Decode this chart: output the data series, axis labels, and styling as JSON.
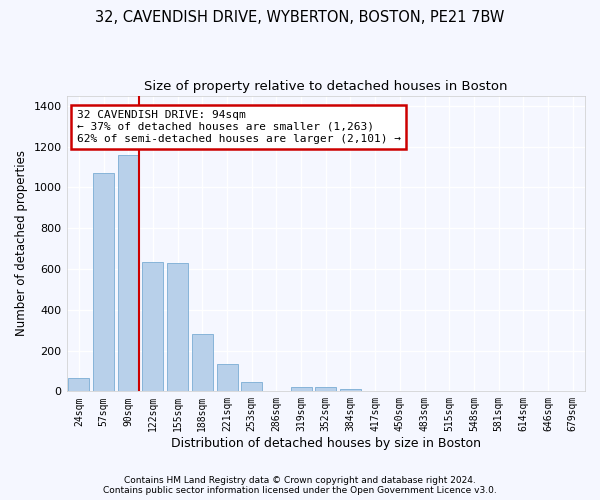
{
  "title1": "32, CAVENDISH DRIVE, WYBERTON, BOSTON, PE21 7BW",
  "title2": "Size of property relative to detached houses in Boston",
  "xlabel": "Distribution of detached houses by size in Boston",
  "ylabel": "Number of detached properties",
  "footer1": "Contains HM Land Registry data © Crown copyright and database right 2024.",
  "footer2": "Contains public sector information licensed under the Open Government Licence v3.0.",
  "bin_labels": [
    "24sqm",
    "57sqm",
    "90sqm",
    "122sqm",
    "155sqm",
    "188sqm",
    "221sqm",
    "253sqm",
    "286sqm",
    "319sqm",
    "352sqm",
    "384sqm",
    "417sqm",
    "450sqm",
    "483sqm",
    "515sqm",
    "548sqm",
    "581sqm",
    "614sqm",
    "646sqm",
    "679sqm"
  ],
  "bar_values": [
    65,
    1070,
    1160,
    635,
    630,
    280,
    135,
    45,
    0,
    20,
    20,
    10,
    0,
    0,
    0,
    0,
    0,
    0,
    0,
    0,
    0
  ],
  "bar_color": "#b8d0ea",
  "bar_edge_color": "#7aadd4",
  "vline_color": "#cc0000",
  "annotation_text": "32 CAVENDISH DRIVE: 94sqm\n← 37% of detached houses are smaller (1,263)\n62% of semi-detached houses are larger (2,101) →",
  "annotation_box_color": "#cc0000",
  "annotation_text_color": "#000000",
  "ylim": [
    0,
    1450
  ],
  "background_color": "#f5f7ff",
  "plot_bg_color": "#f5f7ff",
  "grid_color": "#ffffff",
  "title1_fontsize": 10.5,
  "title2_fontsize": 9.5,
  "xlabel_fontsize": 9,
  "ylabel_fontsize": 8.5,
  "footer_fontsize": 6.5,
  "vline_bin_idx": 2
}
